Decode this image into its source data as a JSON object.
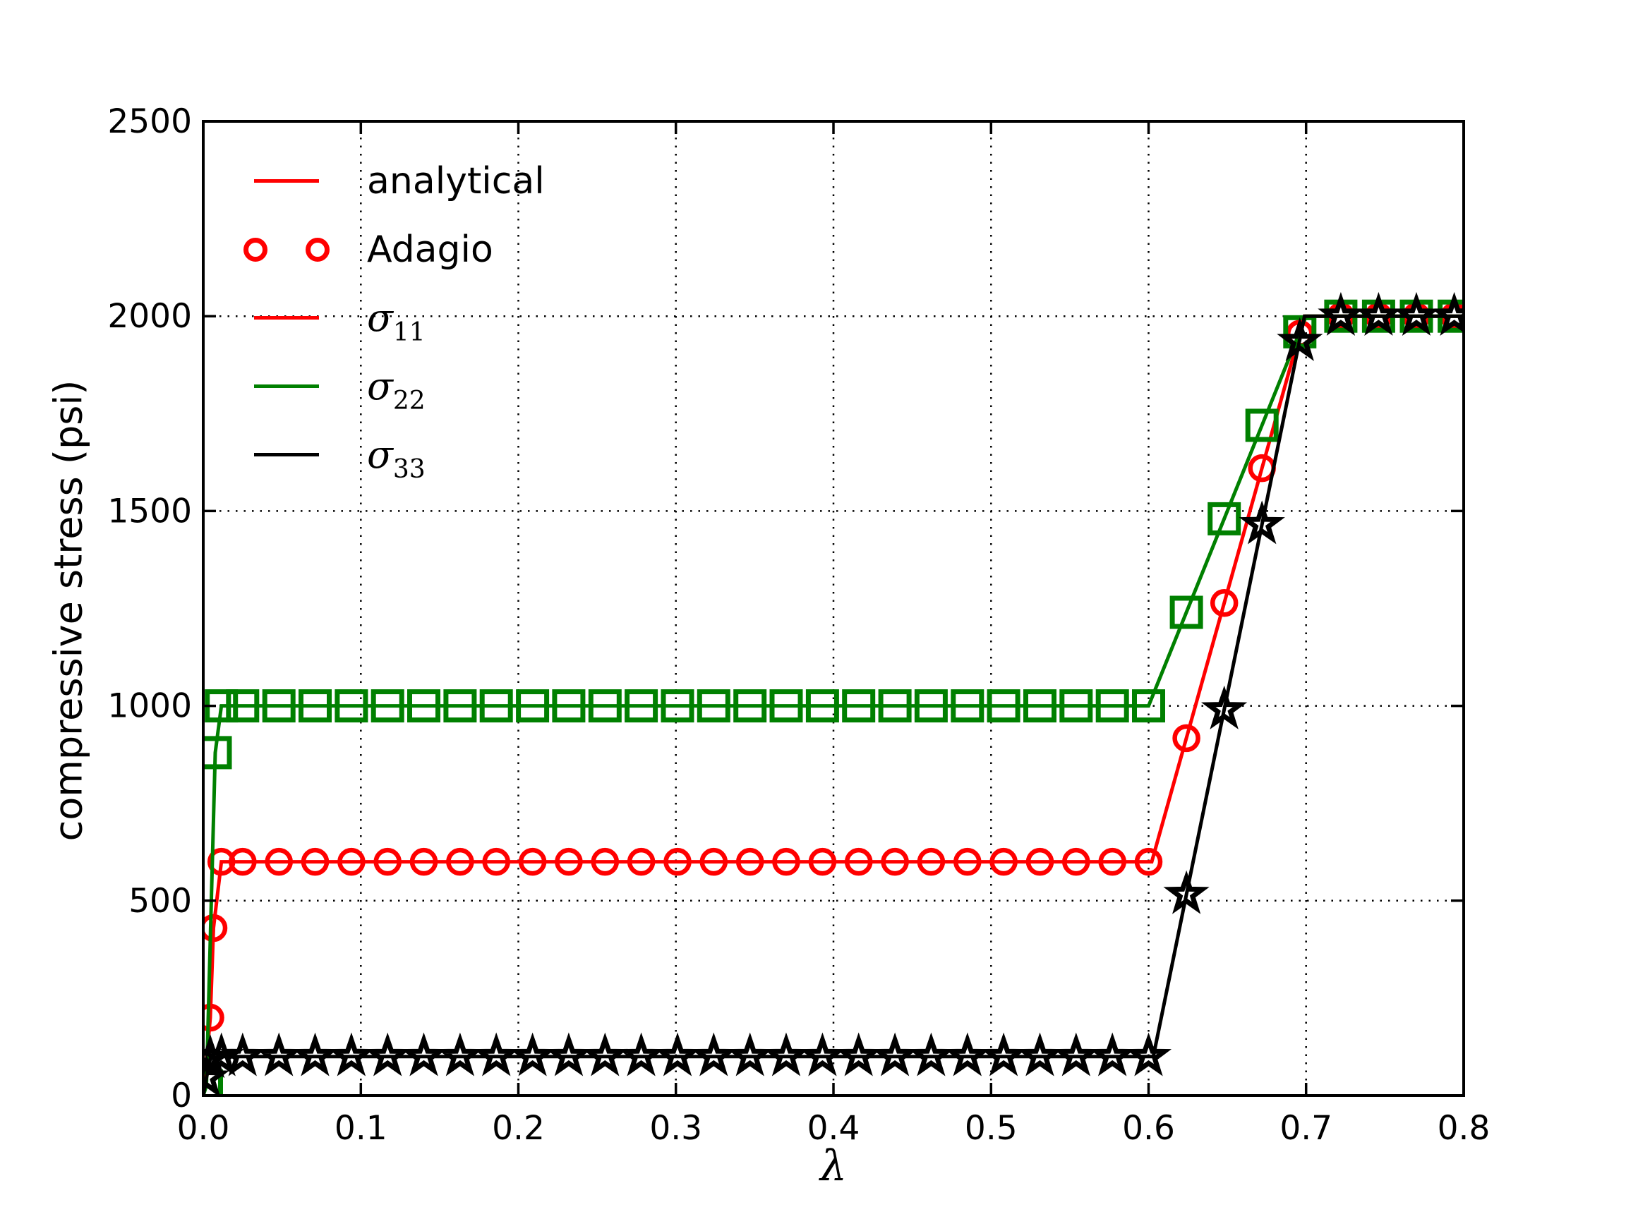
{
  "chart_data": {
    "type": "line",
    "title": "",
    "xlabel": "λ",
    "ylabel": "compressive stress (psi)",
    "xlim": [
      0.0,
      0.8
    ],
    "ylim": [
      0,
      2500
    ],
    "grid": "dotted",
    "legend_position": "upper-left",
    "xticks": {
      "values": [
        0.0,
        0.1,
        0.2,
        0.3,
        0.4,
        0.5,
        0.6,
        0.7,
        0.8
      ],
      "labels": [
        "0.0",
        "0.1",
        "0.2",
        "0.3",
        "0.4",
        "0.5",
        "0.6",
        "0.7",
        "0.8"
      ]
    },
    "yticks": {
      "values": [
        0,
        500,
        1000,
        1500,
        2000,
        2500
      ],
      "labels": [
        "0",
        "500",
        "1000",
        "1500",
        "2000",
        "2500"
      ]
    },
    "series": [
      {
        "name": "sigma11",
        "legend": "σ11",
        "color": "#ff0000",
        "marker": "circle",
        "line": [
          [
            0,
            0
          ],
          [
            0.0045,
            200
          ],
          [
            0.0065,
            430
          ],
          [
            0.0115,
            600
          ],
          [
            0.602,
            600
          ],
          [
            0.699,
            2000
          ],
          [
            0.8,
            2000
          ]
        ],
        "markers": [
          [
            0.0045,
            200
          ],
          [
            0.0065,
            430
          ],
          [
            0.0115,
            600
          ],
          [
            0.025,
            600
          ],
          [
            0.048,
            600
          ],
          [
            0.071,
            600
          ],
          [
            0.094,
            600
          ],
          [
            0.117,
            600
          ],
          [
            0.14,
            600
          ],
          [
            0.163,
            600
          ],
          [
            0.186,
            600
          ],
          [
            0.209,
            600
          ],
          [
            0.232,
            600
          ],
          [
            0.255,
            600
          ],
          [
            0.278,
            600
          ],
          [
            0.301,
            600
          ],
          [
            0.324,
            600
          ],
          [
            0.347,
            600
          ],
          [
            0.37,
            600
          ],
          [
            0.393,
            600
          ],
          [
            0.416,
            600
          ],
          [
            0.439,
            600
          ],
          [
            0.462,
            600
          ],
          [
            0.485,
            600
          ],
          [
            0.508,
            600
          ],
          [
            0.531,
            600
          ],
          [
            0.554,
            600
          ],
          [
            0.577,
            600
          ],
          [
            0.6,
            600
          ],
          [
            0.624,
            917
          ],
          [
            0.648,
            1264
          ],
          [
            0.672,
            1610
          ],
          [
            0.696,
            1955
          ],
          [
            0.722,
            2000
          ],
          [
            0.746,
            2000
          ],
          [
            0.77,
            2000
          ],
          [
            0.794,
            2000
          ]
        ]
      },
      {
        "name": "sigma22",
        "legend": "σ22",
        "color": "#008000",
        "marker": "square",
        "line": [
          [
            0,
            0
          ],
          [
            0.002,
            25
          ],
          [
            0.0076,
            880
          ],
          [
            0.0115,
            1000
          ],
          [
            0.6,
            1000
          ],
          [
            0.7,
            2000
          ],
          [
            0.8,
            2000
          ]
        ],
        "markers": [
          [
            0.002,
            25
          ],
          [
            0.0076,
            880
          ],
          [
            0.0115,
            1000
          ],
          [
            0.025,
            1000
          ],
          [
            0.048,
            1000
          ],
          [
            0.071,
            1000
          ],
          [
            0.094,
            1000
          ],
          [
            0.117,
            1000
          ],
          [
            0.14,
            1000
          ],
          [
            0.163,
            1000
          ],
          [
            0.186,
            1000
          ],
          [
            0.209,
            1000
          ],
          [
            0.232,
            1000
          ],
          [
            0.255,
            1000
          ],
          [
            0.278,
            1000
          ],
          [
            0.301,
            1000
          ],
          [
            0.324,
            1000
          ],
          [
            0.347,
            1000
          ],
          [
            0.37,
            1000
          ],
          [
            0.393,
            1000
          ],
          [
            0.416,
            1000
          ],
          [
            0.439,
            1000
          ],
          [
            0.462,
            1000
          ],
          [
            0.485,
            1000
          ],
          [
            0.508,
            1000
          ],
          [
            0.531,
            1000
          ],
          [
            0.554,
            1000
          ],
          [
            0.577,
            1000
          ],
          [
            0.6,
            1000
          ],
          [
            0.624,
            1240
          ],
          [
            0.648,
            1480
          ],
          [
            0.672,
            1720
          ],
          [
            0.696,
            1960
          ],
          [
            0.722,
            2000
          ],
          [
            0.746,
            2000
          ],
          [
            0.77,
            2000
          ],
          [
            0.794,
            2000
          ]
        ]
      },
      {
        "name": "sigma33",
        "legend": "σ33",
        "color": "#000000",
        "marker": "star",
        "line": [
          [
            0,
            0
          ],
          [
            0.002,
            45
          ],
          [
            0.0045,
            95
          ],
          [
            0.0115,
            100
          ],
          [
            0.603,
            100
          ],
          [
            0.699,
            2000
          ],
          [
            0.8,
            2000
          ]
        ],
        "markers": [
          [
            0.002,
            45
          ],
          [
            0.0045,
            95
          ],
          [
            0.0115,
            100
          ],
          [
            0.025,
            100
          ],
          [
            0.048,
            100
          ],
          [
            0.071,
            100
          ],
          [
            0.094,
            100
          ],
          [
            0.117,
            100
          ],
          [
            0.14,
            100
          ],
          [
            0.163,
            100
          ],
          [
            0.186,
            100
          ],
          [
            0.209,
            100
          ],
          [
            0.232,
            100
          ],
          [
            0.255,
            100
          ],
          [
            0.278,
            100
          ],
          [
            0.301,
            100
          ],
          [
            0.324,
            100
          ],
          [
            0.347,
            100
          ],
          [
            0.37,
            100
          ],
          [
            0.393,
            100
          ],
          [
            0.416,
            100
          ],
          [
            0.439,
            100
          ],
          [
            0.462,
            100
          ],
          [
            0.485,
            100
          ],
          [
            0.508,
            100
          ],
          [
            0.531,
            100
          ],
          [
            0.554,
            100
          ],
          [
            0.577,
            100
          ],
          [
            0.6,
            100
          ],
          [
            0.624,
            516
          ],
          [
            0.648,
            990
          ],
          [
            0.672,
            1465
          ],
          [
            0.696,
            1935
          ],
          [
            0.722,
            2000
          ],
          [
            0.746,
            2000
          ],
          [
            0.77,
            2000
          ],
          [
            0.794,
            2000
          ]
        ]
      }
    ]
  },
  "legend": {
    "items": [
      {
        "label": "analytical",
        "swatch": "line",
        "color": "#ff0000"
      },
      {
        "label": "Adagio",
        "swatch": "circles",
        "color": "#ff0000"
      },
      {
        "symbol": "σ",
        "subscript": "11",
        "swatch": "line",
        "color": "#ff0000"
      },
      {
        "symbol": "σ",
        "subscript": "22",
        "swatch": "line",
        "color": "#008000"
      },
      {
        "symbol": "σ",
        "subscript": "33",
        "swatch": "line",
        "color": "#000000"
      }
    ]
  },
  "colors": {
    "axis": "#000000",
    "grid": "#000000",
    "background": "#ffffff"
  }
}
